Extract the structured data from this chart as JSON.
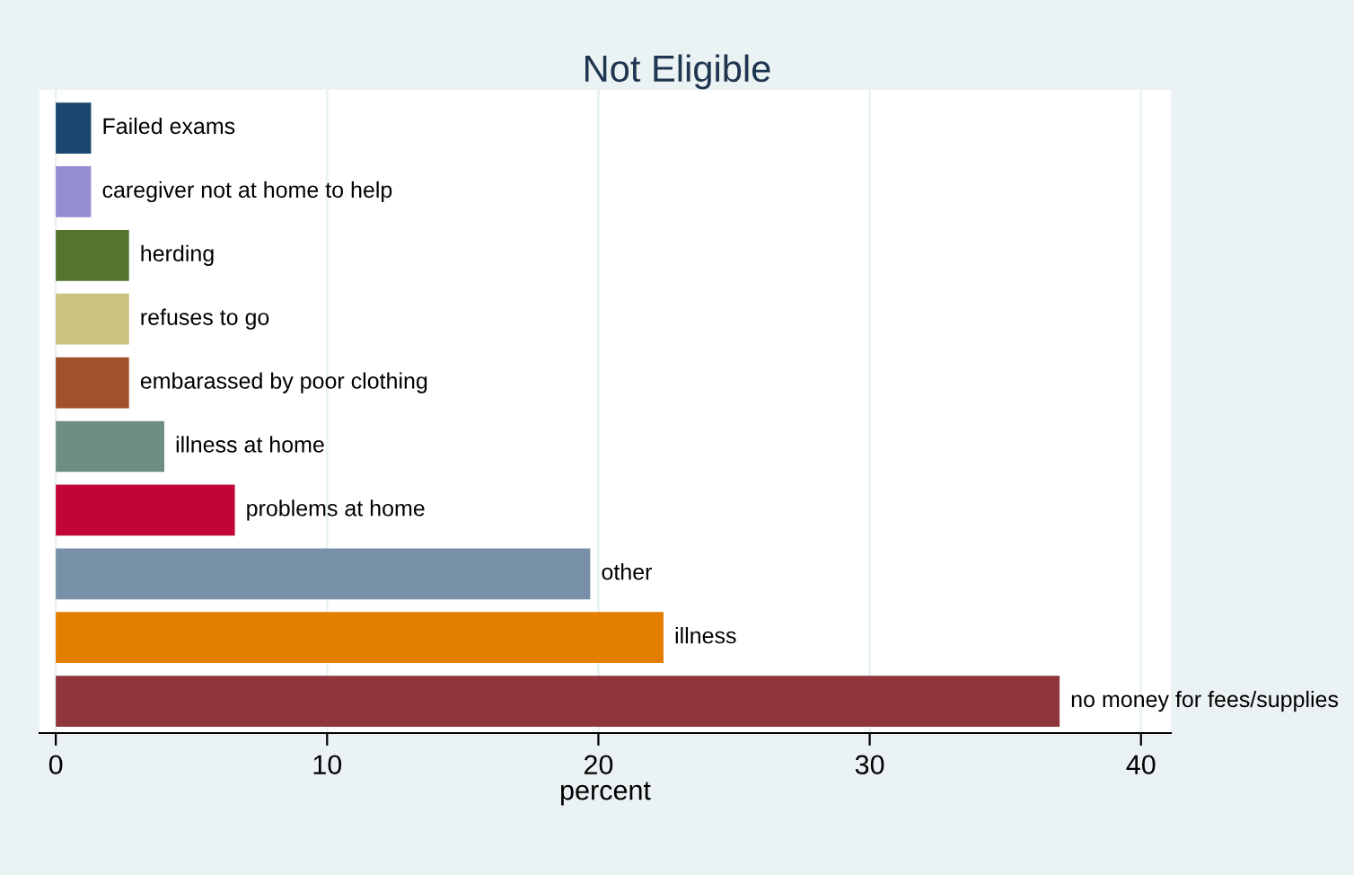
{
  "chart_data": {
    "type": "bar",
    "orientation": "horizontal",
    "title": "Not Eligible",
    "xlabel": "percent",
    "categories": [
      "Failed exams",
      "caregiver not at home to help",
      "herding",
      "refuses to go",
      "embarassed by poor clothing",
      "illness at home",
      "problems at home",
      "other",
      "illness",
      "no money for fees/supplies"
    ],
    "values": [
      1.3,
      1.3,
      2.7,
      2.7,
      2.7,
      4.0,
      6.6,
      19.7,
      22.4,
      37.0
    ],
    "colors": [
      "#1a476f",
      "#938dd2",
      "#55752f",
      "#cac27e",
      "#a0522d",
      "#6e8e84",
      "#c10534",
      "#7890a8",
      "#e37e00",
      "#90353b"
    ],
    "xlim": [
      -0.6,
      41.1
    ],
    "xticks": [
      0,
      10,
      20,
      30,
      40
    ],
    "grid": "x",
    "legend": false
  }
}
